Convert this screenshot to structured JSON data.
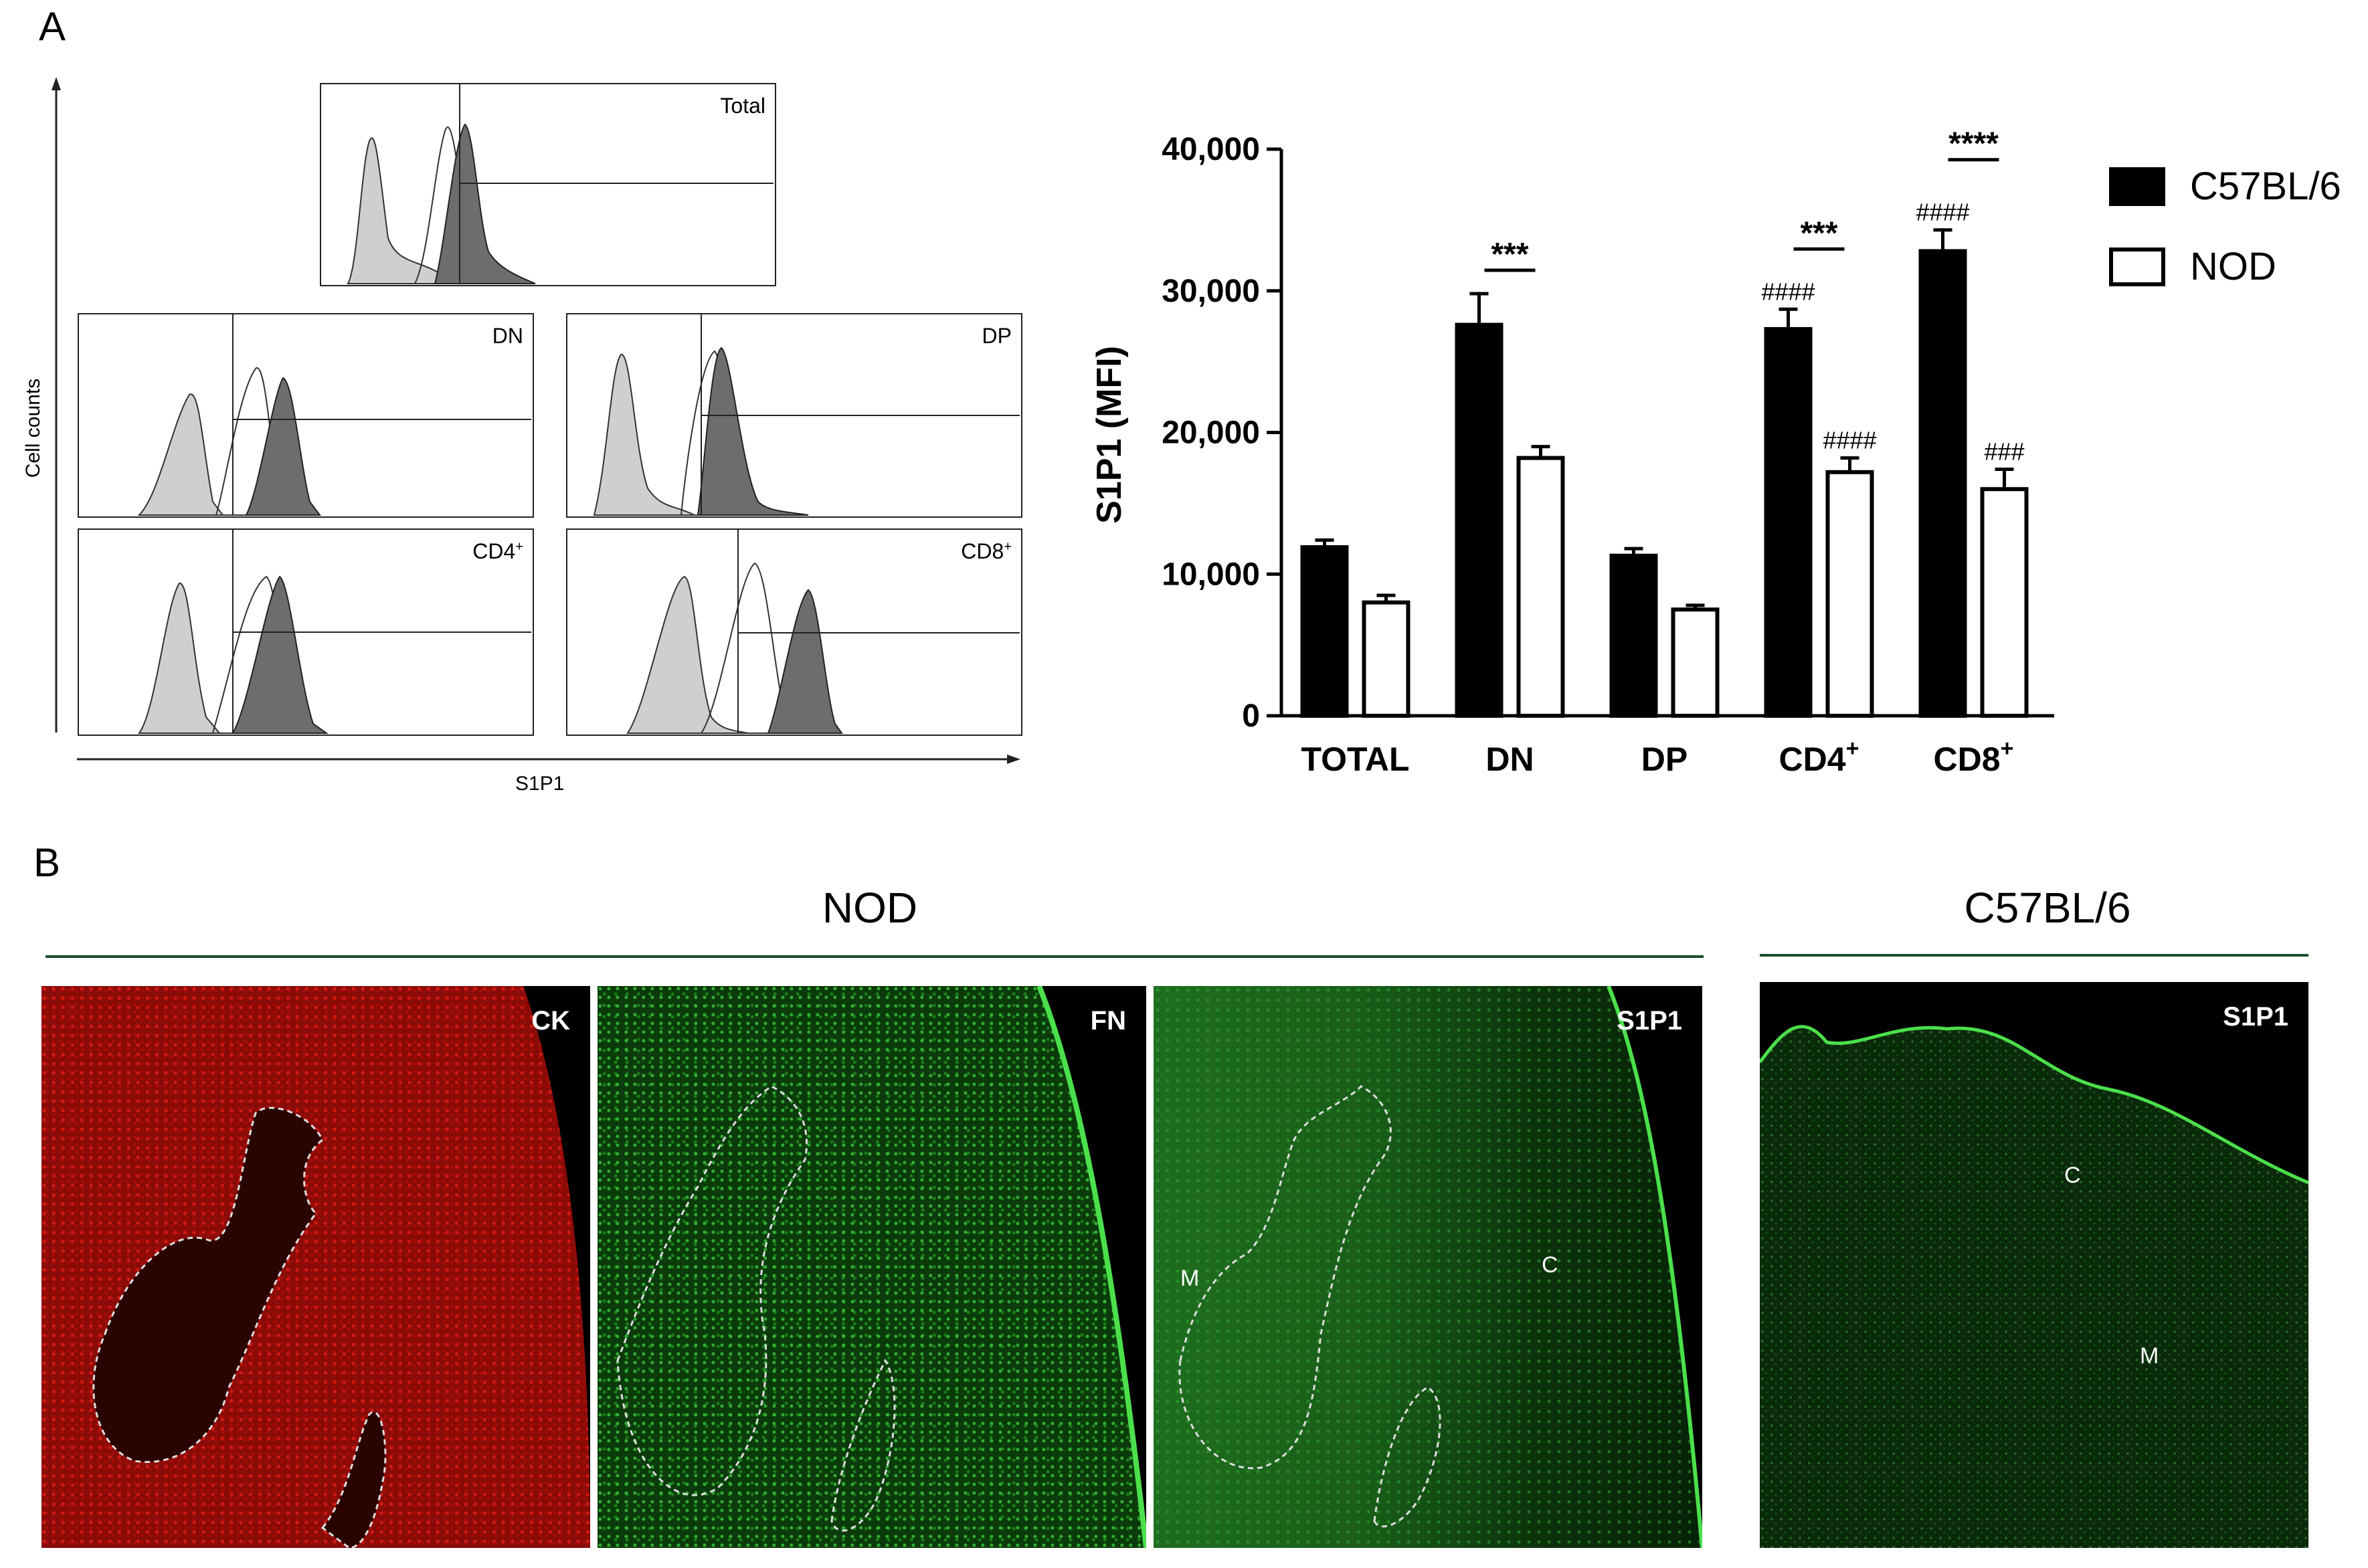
{
  "panel_a": {
    "letter": "A",
    "histograms": {
      "y_axis_label": "Cell counts",
      "x_axis_label": "S1P1",
      "panels": [
        "Total",
        "DN",
        "DP",
        "CD4+",
        "CD8+"
      ]
    }
  },
  "chart_data": {
    "type": "bar",
    "categories": [
      "TOTAL",
      "DN",
      "DP",
      "CD4+",
      "CD8+"
    ],
    "series": [
      {
        "name": "C57BL/6",
        "values": [
          11900,
          27600,
          11300,
          27300,
          32800
        ],
        "errors": [
          500,
          2200,
          500,
          1400,
          1500
        ],
        "color": "#000000"
      },
      {
        "name": "NOD",
        "values": [
          8000,
          18200,
          7500,
          17200,
          16000
        ],
        "errors": [
          500,
          800,
          300,
          1000,
          1400
        ],
        "color": "#ffffff"
      }
    ],
    "ylabel": "S1P1 (MFI)",
    "xlabel": "",
    "ylim": [
      0,
      40000
    ],
    "yticks": [
      "0",
      "10,000",
      "20,000",
      "30,000",
      "40,000"
    ],
    "legend_position": "right",
    "significance": [
      {
        "category": "DN",
        "label": "***"
      },
      {
        "category": "CD4+",
        "label": "***"
      },
      {
        "category": "CD8+",
        "label": "****"
      }
    ],
    "hash_marks": [
      {
        "category": "CD4+",
        "series": "C57BL/6",
        "label": "####"
      },
      {
        "category": "CD4+",
        "series": "NOD",
        "label": "####"
      },
      {
        "category": "CD8+",
        "series": "C57BL/6",
        "label": "####"
      },
      {
        "category": "CD8+",
        "series": "NOD",
        "label": "###"
      }
    ]
  },
  "panel_b": {
    "letter": "B",
    "header_nod": "NOD",
    "header_c57": "C57BL/6",
    "images": [
      {
        "label": "CK",
        "regions": []
      },
      {
        "label": "FN",
        "regions": []
      },
      {
        "label": "S1P1",
        "regions": [
          "M",
          "C"
        ]
      },
      {
        "label": "S1P1",
        "regions": [
          "C",
          "M"
        ]
      }
    ],
    "colors": {
      "ck": "#c8140f",
      "green": "#2aa52a",
      "rule": "#1e4d2b"
    }
  }
}
